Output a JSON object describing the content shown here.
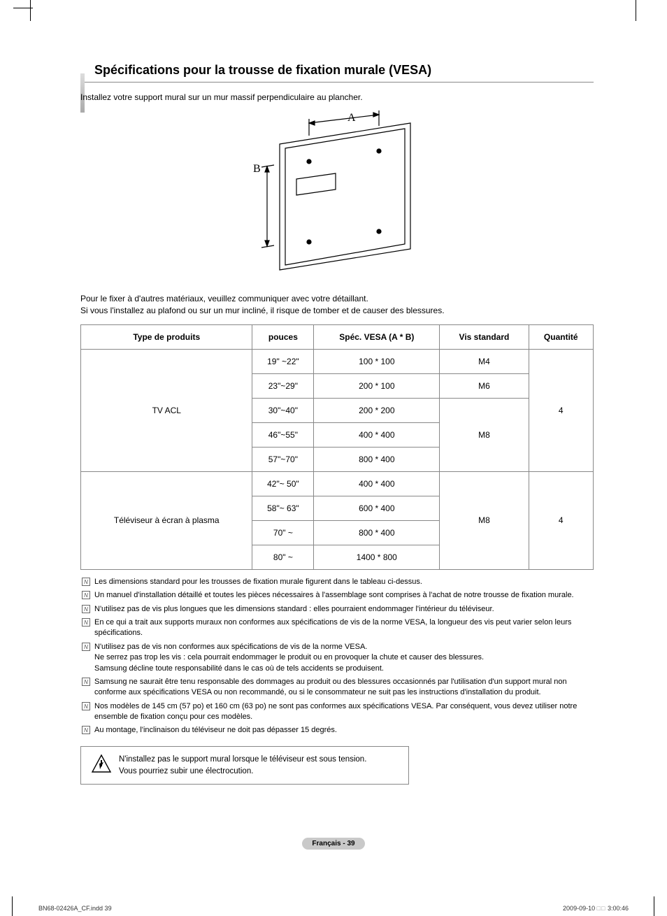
{
  "title": "Spécifications pour la trousse de fixation murale (VESA)",
  "intro": "Installez votre support mural sur un mur massif perpendiculaire au plancher.",
  "diagram": {
    "label_a": "A",
    "label_b": "B"
  },
  "sub_intro_1": "Pour le fixer à d'autres matériaux, veuillez communiquer avec votre détaillant.",
  "sub_intro_2": "Si vous l'installez au plafond ou sur un mur incliné, il risque de tomber et de causer des blessures.",
  "table": {
    "headers": [
      "Type de produits",
      "pouces",
      "Spéc. VESA (A * B)",
      "Vis standard",
      "Quantité"
    ],
    "groups": [
      {
        "product": "TV ACL",
        "quantity": "4",
        "rows": [
          {
            "inches": "19\" ~22\"",
            "vesa": "100 * 100",
            "screw": "M4"
          },
          {
            "inches": "23\"~29\"",
            "vesa": "200 * 100",
            "screw": "M6"
          },
          {
            "inches": "30\"~40\"",
            "vesa": "200 * 200",
            "screw": "M8"
          },
          {
            "inches": "46\"~55\"",
            "vesa": "400 * 400",
            "screw": "M8"
          },
          {
            "inches": "57\"~70\"",
            "vesa": "800 * 400",
            "screw": "M8"
          }
        ]
      },
      {
        "product": "Téléviseur à écran à plasma",
        "quantity": "4",
        "rows": [
          {
            "inches": "42\"~ 50\"",
            "vesa": "400 * 400",
            "screw": "M8"
          },
          {
            "inches": "58\"~ 63\"",
            "vesa": "600 * 400",
            "screw": "M8"
          },
          {
            "inches": "70\" ~",
            "vesa": "800 * 400",
            "screw": "M8"
          },
          {
            "inches": "80\" ~",
            "vesa": "1400 * 800",
            "screw": "M8"
          }
        ]
      }
    ]
  },
  "notes": [
    "Les dimensions standard pour les trousses de fixation murale figurent dans le tableau ci-dessus.",
    "Un manuel d'installation détaillé et toutes les pièces nécessaires à l'assemblage sont comprises à l'achat de notre trousse de fixation murale.",
    "N'utilisez pas de vis plus longues que les dimensions standard : elles pourraient endommager l'intérieur du téléviseur.",
    "En ce qui a trait aux supports muraux non conformes aux spécifications de vis de la norme VESA, la longueur des vis peut varier selon leurs spécifications.",
    "N'utilisez pas de vis non conformes aux spécifications de vis de la norme VESA.\nNe serrez pas trop les vis : cela pourrait endommager le produit ou en provoquer la chute et causer des blessures.\nSamsung décline toute responsabilité dans le cas où de tels accidents se produisent.",
    "Samsung ne saurait être tenu responsable des dommages au produit ou des blessures occasionnés par l'utilisation d'un support mural non conforme aux spécifications VESA ou non recommandé, ou si le consommateur ne suit pas les instructions d'installation du produit.",
    "Nos modèles de 145 cm (57 po) et 160 cm (63 po) ne sont pas conformes aux spécifications VESA. Par conséquent, vous devez utiliser notre ensemble de fixation conçu pour ces modèles.",
    "Au montage, l'inclinaison du téléviseur ne doit pas dépasser 15 degrés."
  ],
  "warning": {
    "line1": "N'installez pas le support mural lorsque le téléviseur est sous tension.",
    "line2": "Vous pourriez subir une électrocution."
  },
  "footer": "Français - 39",
  "meta": {
    "left": "BN68-02426A_CF.indd   39",
    "right_prefix": "2009-09-10   ",
    "right_boxes": "□□",
    "right_suffix": " 3:00:46"
  }
}
